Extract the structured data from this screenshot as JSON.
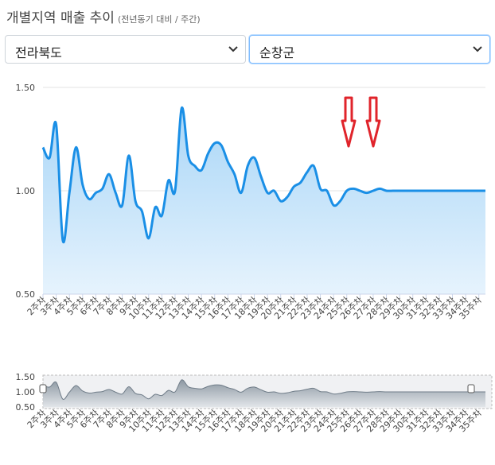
{
  "header": {
    "title": "개별지역 매출 추이",
    "subtitle": "(전년동기 대비 / 주간)"
  },
  "filters": {
    "region_select": "전라북도",
    "district_select": "순창군"
  },
  "colors": {
    "line": "#1a8fe6",
    "area_top": "#a9d6f7",
    "area_bottom": "#e6f3fd",
    "arrow": "#e0242b",
    "navigator_area": "#98a3ad"
  },
  "chart_data": {
    "type": "area",
    "ylim": [
      0.5,
      1.5
    ],
    "yticks": [
      "0.50",
      "1.00",
      "1.50"
    ],
    "categories": [
      "2주차",
      "3주차",
      "4주차",
      "5주차",
      "6주차",
      "7주차",
      "8주차",
      "9주차",
      "10주차",
      "11주차",
      "12주차",
      "13주차",
      "14주차",
      "15주차",
      "16주차",
      "17주차",
      "18주차",
      "19주차",
      "20주차",
      "21주차",
      "22주차",
      "23주차",
      "24주차",
      "25주차",
      "26주차",
      "27주차",
      "28주차",
      "29주차",
      "30주차",
      "31주차",
      "32주차",
      "33주차",
      "34주차",
      "35주차"
    ],
    "x": [
      1,
      1.5,
      2,
      2.5,
      3,
      3.5,
      4,
      4.5,
      5,
      5.5,
      6,
      6.5,
      7,
      7.5,
      8,
      8.5,
      9,
      9.5,
      10,
      10.5,
      11,
      11.5,
      12,
      12.5,
      13,
      13.5,
      14,
      14.5,
      15,
      15.5,
      16,
      16.5,
      17,
      17.5,
      18,
      18.5,
      19,
      19.5,
      20,
      20.5,
      21,
      21.5,
      22,
      22.5,
      23,
      23.5,
      24,
      24.5,
      25,
      25.5,
      26,
      26.5,
      27,
      27.5,
      28,
      28.5,
      29,
      29.5,
      30,
      30.5,
      31,
      31.5,
      32,
      32.5,
      33,
      33.5,
      34,
      34.5
    ],
    "values": [
      1.21,
      1.16,
      1.32,
      0.76,
      0.99,
      1.21,
      1.03,
      0.96,
      0.99,
      1.01,
      1.08,
      0.99,
      0.93,
      1.17,
      0.95,
      0.9,
      0.77,
      0.92,
      0.88,
      1.05,
      1.0,
      1.4,
      1.17,
      1.12,
      1.1,
      1.18,
      1.23,
      1.22,
      1.14,
      1.08,
      0.99,
      1.12,
      1.16,
      1.07,
      0.99,
      1.0,
      0.95,
      0.97,
      1.02,
      1.04,
      1.09,
      1.12,
      1.01,
      1.0,
      0.93,
      0.95,
      1.0,
      1.01,
      1.0,
      0.99,
      1.0,
      1.01,
      1.0,
      1.0,
      1.0,
      1.0,
      1.0,
      1.0,
      1.0,
      1.0,
      1.0,
      1.0,
      1.0,
      1.0,
      1.0,
      1.0,
      1.0,
      1.0
    ],
    "navigator": {
      "yticks": [
        "1.50",
        "1.00",
        "0.50"
      ]
    },
    "annotations": [
      "arrow-1",
      "arrow-2"
    ]
  }
}
